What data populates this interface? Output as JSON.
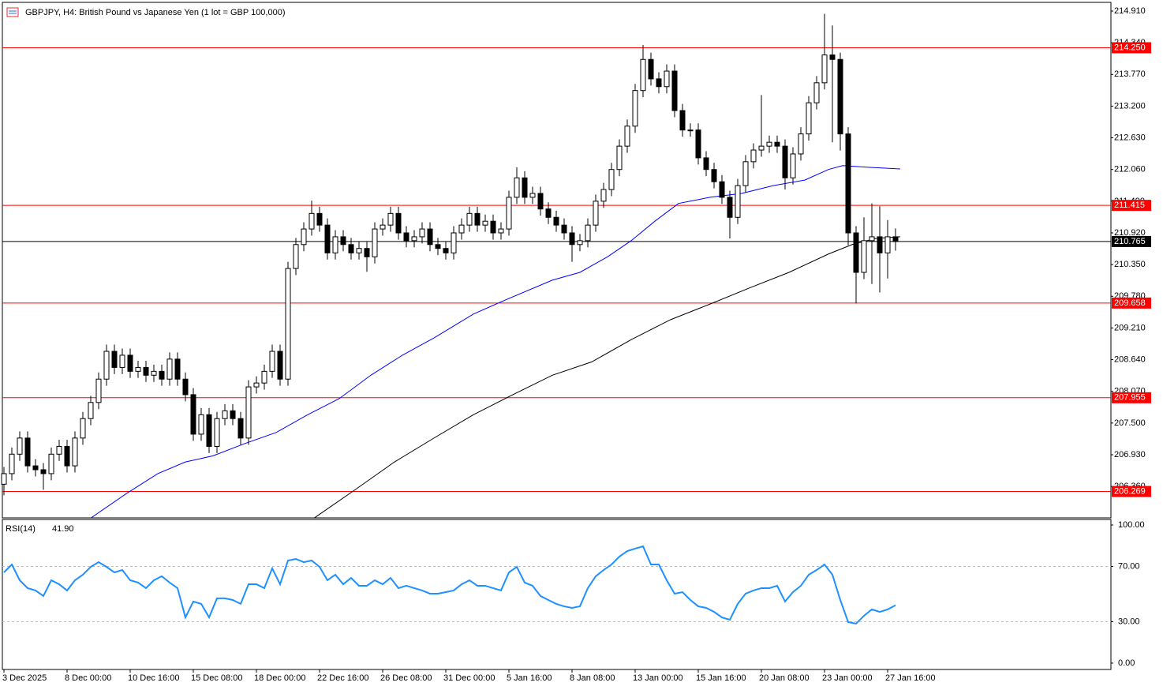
{
  "chart_data": {
    "type": "candlestick",
    "title": "GBPJPY, H4:  British Pound vs Japanese Yen (1 lot = GBP 100,000)",
    "categories": [
      "3 Dec 2025",
      null,
      null,
      null,
      null,
      null,
      null,
      null,
      "8 Dec 00:00",
      null,
      null,
      null,
      null,
      null,
      null,
      null,
      "10 Dec 16:00",
      null,
      null,
      null,
      null,
      null,
      null,
      null,
      "15 Dec 08:00",
      null,
      null,
      null,
      null,
      null,
      null,
      null,
      "18 Dec 00:00",
      null,
      null,
      null,
      null,
      null,
      null,
      null,
      "22 Dec 16:00",
      null,
      null,
      null,
      null,
      null,
      null,
      null,
      "26 Dec 08:00",
      null,
      null,
      null,
      null,
      null,
      null,
      null,
      "31 Dec 00:00",
      null,
      null,
      null,
      null,
      null,
      null,
      null,
      "5 Jan 16:00",
      null,
      null,
      null,
      null,
      null,
      null,
      null,
      "8 Jan 08:00",
      null,
      null,
      null,
      null,
      null,
      null,
      null,
      "13 Jan 00:00",
      null,
      null,
      null,
      null,
      null,
      null,
      null,
      "15 Jan 16:00",
      null,
      null,
      null,
      null,
      null,
      null,
      null,
      "20 Jan 08:00",
      null,
      null,
      null,
      null,
      null,
      null,
      null,
      "23 Jan 00:00",
      null,
      null,
      null,
      null,
      null,
      null,
      null,
      "27 Jan 16:00",
      null
    ],
    "open": [
      206.4,
      206.59,
      206.94,
      207.23,
      206.73,
      206.66,
      206.59,
      206.94,
      207.08,
      206.73,
      207.23,
      207.58,
      207.87,
      208.29,
      208.79,
      208.5,
      208.72,
      208.43,
      208.5,
      208.36,
      208.43,
      208.29,
      208.65,
      208.29,
      208.01,
      207.3,
      207.65,
      207.08,
      207.58,
      207.72,
      207.58,
      207.23,
      208.15,
      208.22,
      208.43,
      208.79,
      208.29,
      210.28,
      210.71,
      210.99,
      211.27,
      211.06,
      210.56,
      210.85,
      210.71,
      210.56,
      210.64,
      210.49,
      210.99,
      211.06,
      211.27,
      210.92,
      210.78,
      210.85,
      210.99,
      210.71,
      210.64,
      210.56,
      210.92,
      211.06,
      211.27,
      211.06,
      211.13,
      210.92,
      210.99,
      211.56,
      211.91,
      211.56,
      211.63,
      211.35,
      211.2,
      211.06,
      210.92,
      210.71,
      210.78,
      211.06,
      211.49,
      211.7,
      212.06,
      212.48,
      212.84,
      213.48,
      214.04,
      213.69,
      213.55,
      213.83,
      213.12,
      212.77,
      212.77,
      212.27,
      212.06,
      211.84,
      211.56,
      211.2,
      211.77,
      212.2,
      212.41,
      212.48,
      212.55,
      212.48,
      211.91,
      212.34,
      212.7,
      213.26,
      213.62,
      214.12,
      214.04,
      212.7,
      210.92,
      210.21,
      210.78,
      210.85,
      210.56,
      210.85
    ],
    "high": [
      206.71,
      207.06,
      207.35,
      207.35,
      206.85,
      206.78,
      207.06,
      207.2,
      207.2,
      207.35,
      207.7,
      207.99,
      208.41,
      208.91,
      208.91,
      208.84,
      208.84,
      208.62,
      208.62,
      208.55,
      208.55,
      208.77,
      208.77,
      208.41,
      208.13,
      207.77,
      207.77,
      207.7,
      207.84,
      207.84,
      207.7,
      208.27,
      208.34,
      208.55,
      208.91,
      208.91,
      210.4,
      210.83,
      211.11,
      211.5,
      211.39,
      211.18,
      210.97,
      210.97,
      210.83,
      210.76,
      210.76,
      211.11,
      211.18,
      211.39,
      211.39,
      211.04,
      210.97,
      211.11,
      211.11,
      210.83,
      210.76,
      211.04,
      211.18,
      211.39,
      211.39,
      211.25,
      211.25,
      211.11,
      211.68,
      212.1,
      212.03,
      211.75,
      211.75,
      211.47,
      211.32,
      211.18,
      211.04,
      210.9,
      211.18,
      211.61,
      211.82,
      212.18,
      212.6,
      212.96,
      213.6,
      214.3,
      214.16,
      213.81,
      213.95,
      213.95,
      213.24,
      212.89,
      212.89,
      212.39,
      212.18,
      211.96,
      211.68,
      211.89,
      212.32,
      212.53,
      213.4,
      212.67,
      212.67,
      212.6,
      212.46,
      212.82,
      213.38,
      213.74,
      214.86,
      214.65,
      214.16,
      212.82,
      211.04,
      211.2,
      211.45,
      211.4,
      211.15,
      211.0
    ],
    "low": [
      206.2,
      206.47,
      206.82,
      206.61,
      206.54,
      206.3,
      206.47,
      206.82,
      206.61,
      206.61,
      207.11,
      207.46,
      207.75,
      208.17,
      208.38,
      208.38,
      208.31,
      208.31,
      208.24,
      208.24,
      208.17,
      208.17,
      208.17,
      207.89,
      207.18,
      207.18,
      206.96,
      206.96,
      207.46,
      207.46,
      207.11,
      207.11,
      208.03,
      208.1,
      208.31,
      208.17,
      208.17,
      210.16,
      210.59,
      210.87,
      210.94,
      210.44,
      210.44,
      210.59,
      210.44,
      210.44,
      210.22,
      210.37,
      210.87,
      210.94,
      210.8,
      210.66,
      210.66,
      210.73,
      210.59,
      210.52,
      210.44,
      210.44,
      210.8,
      210.94,
      210.94,
      210.94,
      210.8,
      210.8,
      210.87,
      211.44,
      211.44,
      211.44,
      211.23,
      211.08,
      210.94,
      210.8,
      210.4,
      210.59,
      210.66,
      210.94,
      211.37,
      211.58,
      211.94,
      212.36,
      212.72,
      213.36,
      213.57,
      213.43,
      213.43,
      213.0,
      212.65,
      212.65,
      212.15,
      211.94,
      211.72,
      211.44,
      210.82,
      211.08,
      211.65,
      212.08,
      212.29,
      212.36,
      212.36,
      211.7,
      211.79,
      212.22,
      212.58,
      213.14,
      213.5,
      212.55,
      212.4,
      210.7,
      209.65,
      210.09,
      210.0,
      209.85,
      210.1,
      210.6
    ],
    "close": [
      206.59,
      206.94,
      207.23,
      206.73,
      206.66,
      206.59,
      206.94,
      207.08,
      206.73,
      207.23,
      207.58,
      207.87,
      208.29,
      208.79,
      208.5,
      208.72,
      208.43,
      208.5,
      208.36,
      208.43,
      208.29,
      208.65,
      208.29,
      208.01,
      207.3,
      207.65,
      207.08,
      207.58,
      207.72,
      207.58,
      207.23,
      208.15,
      208.22,
      208.43,
      208.79,
      208.29,
      210.28,
      210.71,
      210.99,
      211.27,
      211.06,
      210.56,
      210.85,
      210.71,
      210.56,
      210.64,
      210.49,
      210.99,
      211.06,
      211.27,
      210.92,
      210.78,
      210.85,
      210.99,
      210.71,
      210.64,
      210.56,
      210.92,
      211.06,
      211.27,
      211.06,
      211.13,
      210.92,
      210.99,
      211.56,
      211.91,
      211.56,
      211.63,
      211.35,
      211.2,
      211.06,
      210.92,
      210.71,
      210.78,
      211.06,
      211.49,
      211.7,
      212.06,
      212.48,
      212.84,
      213.48,
      214.04,
      213.69,
      213.55,
      213.83,
      213.12,
      212.77,
      212.77,
      212.27,
      212.06,
      211.84,
      211.56,
      211.2,
      211.77,
      212.2,
      212.41,
      212.48,
      212.55,
      212.48,
      211.91,
      212.34,
      212.7,
      213.26,
      213.62,
      214.12,
      214.04,
      212.7,
      210.92,
      210.21,
      210.78,
      210.85,
      210.56,
      210.85,
      210.765
    ],
    "up_color": "#ffffff",
    "down_color": "#000000",
    "ylim": [
      205.794,
      215.066
    ],
    "yticks": [
      {
        "value": 214.91,
        "label": "214.910"
      },
      {
        "value": 214.34,
        "label": "214.340"
      },
      {
        "value": 213.77,
        "label": "213.770"
      },
      {
        "value": 213.2,
        "label": "213.200"
      },
      {
        "value": 212.63,
        "label": "212.630"
      },
      {
        "value": 212.06,
        "label": "212.060"
      },
      {
        "value": 211.49,
        "label": "211.490"
      },
      {
        "value": 210.92,
        "label": "210.920"
      },
      {
        "value": 210.35,
        "label": "210.350"
      },
      {
        "value": 209.78,
        "label": "209.780"
      },
      {
        "value": 209.21,
        "label": "209.210"
      },
      {
        "value": 208.64,
        "label": "208.640"
      },
      {
        "value": 208.07,
        "label": "208.070"
      },
      {
        "value": 207.5,
        "label": "207.500"
      },
      {
        "value": 206.93,
        "label": "206.930"
      },
      {
        "value": 206.36,
        "label": "206.360"
      }
    ],
    "levels": [
      {
        "value": 214.25,
        "label": "214.250",
        "color": "#ff0000"
      },
      {
        "value": 211.415,
        "label": "211.415",
        "color": "#ff0000"
      },
      {
        "value": 209.658,
        "label": "209.658",
        "color": "#ff0000"
      },
      {
        "value": 207.955,
        "label": "207.955",
        "color": "#ff0000"
      },
      {
        "value": 206.269,
        "label": "206.269",
        "color": "#ff0000"
      },
      {
        "value": 210.765,
        "label": "210.765",
        "color": "#000000"
      }
    ],
    "overlays": [
      {
        "color": "#0000ff",
        "x": [
          11,
          15.5,
          19.5,
          23,
          26.5,
          30.5,
          34.5,
          38.5,
          42.5,
          46.5,
          50.5,
          54.5,
          59.5,
          63.5,
          69.5,
          73,
          76.5,
          79.5,
          82.5,
          85.5,
          89.5,
          93.5,
          97.5,
          101.5,
          104.5,
          106.3,
          109.5,
          113.6
        ],
        "values": [
          205.79,
          206.23,
          206.59,
          206.8,
          206.91,
          207.13,
          207.33,
          207.65,
          207.94,
          208.36,
          208.72,
          209.03,
          209.46,
          209.71,
          210.07,
          210.21,
          210.49,
          210.78,
          211.13,
          211.45,
          211.56,
          211.63,
          211.77,
          211.87,
          212.06,
          212.13,
          212.1,
          212.07
        ]
      },
      {
        "color": "#000000",
        "x": [
          39.3,
          44.5,
          49.5,
          54.5,
          59.5,
          64.5,
          69.5,
          74.5,
          79.5,
          84.5,
          89.5,
          94.5,
          99.5,
          104.5,
          107.5,
          110.5,
          113.6
        ],
        "values": [
          205.79,
          206.3,
          206.8,
          207.23,
          207.65,
          208.01,
          208.36,
          208.6,
          209.0,
          209.36,
          209.64,
          209.93,
          210.21,
          210.54,
          210.71,
          210.82,
          210.85
        ]
      }
    ],
    "indicator": {
      "type": "line",
      "name": "RSI(14)",
      "current": {
        "value": 41.9,
        "label": "41.90"
      },
      "color": "#1e90ff",
      "values": [
        65.7,
        71.4,
        60.0,
        54.3,
        52.6,
        48.6,
        60.0,
        57.1,
        52.6,
        60.0,
        64.0,
        69.7,
        73.1,
        69.7,
        65.7,
        67.4,
        60.0,
        58.3,
        54.3,
        60.0,
        62.9,
        58.3,
        54.3,
        33.1,
        44.6,
        42.9,
        33.1,
        46.9,
        46.9,
        45.7,
        42.9,
        57.1,
        57.1,
        54.3,
        68.6,
        57.1,
        74.3,
        75.4,
        73.1,
        74.3,
        69.7,
        60.0,
        64.0,
        57.1,
        61.7,
        56.0,
        56.0,
        60.0,
        57.1,
        61.7,
        54.3,
        56.0,
        54.3,
        52.6,
        50.3,
        50.3,
        51.4,
        52.6,
        57.1,
        60.0,
        56.0,
        56.0,
        54.3,
        52.6,
        65.7,
        69.7,
        58.3,
        56.0,
        48.6,
        45.7,
        42.9,
        41.1,
        40.0,
        41.1,
        54.3,
        62.9,
        67.4,
        71.4,
        77.1,
        81.1,
        82.9,
        84.6,
        71.4,
        71.4,
        60.0,
        50.3,
        51.4,
        45.7,
        41.1,
        40.0,
        37.1,
        33.1,
        31.4,
        42.9,
        50.3,
        52.6,
        54.3,
        54.3,
        56.0,
        44.6,
        51.4,
        56.0,
        64.0,
        67.4,
        71.4,
        64.0,
        45.7,
        29.7,
        28.6,
        34.3,
        38.9,
        37.1,
        38.9,
        41.9
      ],
      "ylim": [
        -4.6,
        104
      ],
      "yticks": [
        {
          "value": 100,
          "label": "100.00"
        },
        {
          "value": 70,
          "label": "70.00"
        },
        {
          "value": 30,
          "label": "30.00"
        },
        {
          "value": 0,
          "label": "0.00"
        }
      ],
      "levels": [
        70,
        30
      ]
    }
  }
}
